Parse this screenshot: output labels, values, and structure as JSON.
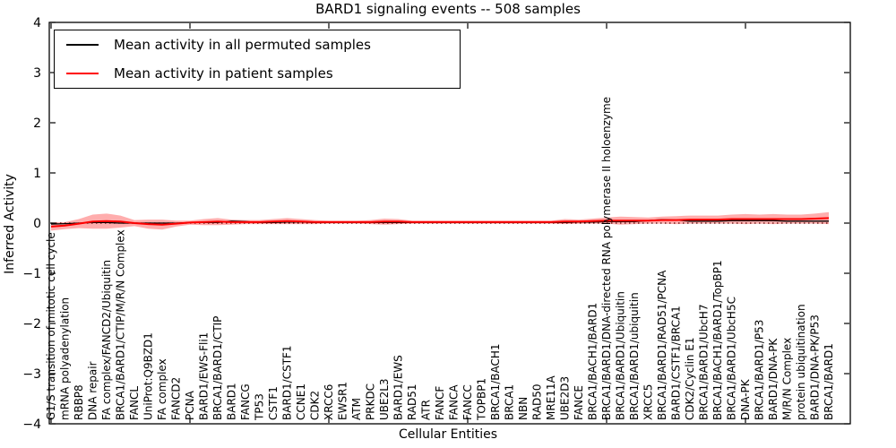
{
  "chart_data": {
    "type": "line",
    "title": "BARD1 signaling events -- 508 samples",
    "xlabel": "Cellular Entities",
    "ylabel": "Inferred Activity",
    "ylim": [
      -4,
      4
    ],
    "yticks": [
      4,
      3,
      2,
      1,
      0,
      -1,
      -2,
      -3,
      -4
    ],
    "x_major_ticks": [
      0,
      10,
      20,
      30,
      40,
      50
    ],
    "grid": false,
    "legend_position": "upper-left",
    "zero_line_style": "dotted",
    "zero_line_color": "#000000",
    "categories": [
      "G1/S transition of mitotic cell cycle",
      "mRNA polyadenylation",
      "RBBP8",
      "DNA repair",
      "FA complex/FANCD2/Ubiquitin",
      "BRCA1/BARD1/CTIP/M/R/N Complex",
      "FANCL",
      "UniProt:Q9BZD1",
      "FA complex",
      "FANCD2",
      "PCNA",
      "BARD1/EWS-Fli1",
      "BRCA1/BARD1/CTIP",
      "BARD1",
      "FANCG",
      "TP53",
      "CSTF1",
      "BARD1/CSTF1",
      "CCNE1",
      "CDK2",
      "XRCC6",
      "EWSR1",
      "ATM",
      "PRKDC",
      "UBE2L3",
      "BARD1/EWS",
      "RAD51",
      "ATR",
      "FANCF",
      "FANCA",
      "FANCC",
      "TOPBP1",
      "BRCA1/BACH1",
      "BRCA1",
      "NBN",
      "RAD50",
      "MRE11A",
      "UBE2D3",
      "FANCE",
      "BRCA1/BACH1/BARD1",
      "BRCA1/BARD1/DNA-directed RNA polymerase II holoenzyme",
      "BRCA1/BARD1/Ubiquitin",
      "BRCA1/BARD1/ubiquitin",
      "XRCC5",
      "BRCA1/BARD1/RAD51/PCNA",
      "BARD1/CSTF1/BRCA1",
      "CDK2/Cyclin E1",
      "BRCA1/BARD1/UbcH7",
      "BRCA1/BACH1/BARD1/TopBP1",
      "BRCA1/BARD1/UbcH5C",
      "DNA-PK",
      "BRCA1/BARD1/P53",
      "BARD1/DNA-PK",
      "M/R/N Complex",
      "protein ubiquitination",
      "BARD1/DNA-PK/P53",
      "BRCA1/BARD1"
    ],
    "series": [
      {
        "name": "Mean activity in all permuted samples",
        "color": "#000000",
        "values": [
          -0.02,
          -0.01,
          0,
          0.01,
          0.01,
          0,
          0,
          0,
          0,
          0,
          0.01,
          0.01,
          0.01,
          0.04,
          0.03,
          0.01,
          0.01,
          0.02,
          0.02,
          0.01,
          0.01,
          0.01,
          0.01,
          0.01,
          0.01,
          0.01,
          0.01,
          0.01,
          0.01,
          0.01,
          0.01,
          0.01,
          0.01,
          0.01,
          0.01,
          0.01,
          0.01,
          0.01,
          0.02,
          0.02,
          0.03,
          0.03,
          0.03,
          0.05,
          0.07,
          0.06,
          0.04,
          0.04,
          0.04,
          0.05,
          0.05,
          0.05,
          0.05,
          0.04,
          0.04,
          0.04,
          0.04
        ]
      },
      {
        "name": "Mean activity in patient samples",
        "color": "#ff0000",
        "band_opacity": 0.32,
        "values": [
          -0.07,
          -0.05,
          -0.01,
          0.03,
          0.04,
          0.03,
          0,
          -0.02,
          -0.03,
          -0.01,
          0.01,
          0.02,
          0.03,
          0.02,
          0.02,
          0.02,
          0.03,
          0.04,
          0.03,
          0.02,
          0.02,
          0.02,
          0.02,
          0.02,
          0.03,
          0.03,
          0.02,
          0.02,
          0.02,
          0.02,
          0.02,
          0.02,
          0.02,
          0.02,
          0.02,
          0.02,
          0.02,
          0.03,
          0.03,
          0.04,
          0.05,
          0.05,
          0.05,
          0.05,
          0.06,
          0.06,
          0.07,
          0.07,
          0.07,
          0.08,
          0.08,
          0.08,
          0.08,
          0.08,
          0.08,
          0.09,
          0.1
        ],
        "band_halfwidth": [
          0.08,
          0.07,
          0.09,
          0.14,
          0.15,
          0.12,
          0.06,
          0.09,
          0.1,
          0.06,
          0.04,
          0.06,
          0.07,
          0.05,
          0.04,
          0.04,
          0.05,
          0.06,
          0.05,
          0.04,
          0.03,
          0.03,
          0.03,
          0.04,
          0.06,
          0.05,
          0.03,
          0.03,
          0.03,
          0.03,
          0.03,
          0.03,
          0.03,
          0.03,
          0.03,
          0.03,
          0.03,
          0.05,
          0.04,
          0.05,
          0.06,
          0.08,
          0.07,
          0.06,
          0.07,
          0.08,
          0.08,
          0.08,
          0.08,
          0.09,
          0.1,
          0.09,
          0.1,
          0.09,
          0.09,
          0.1,
          0.12
        ]
      }
    ]
  }
}
